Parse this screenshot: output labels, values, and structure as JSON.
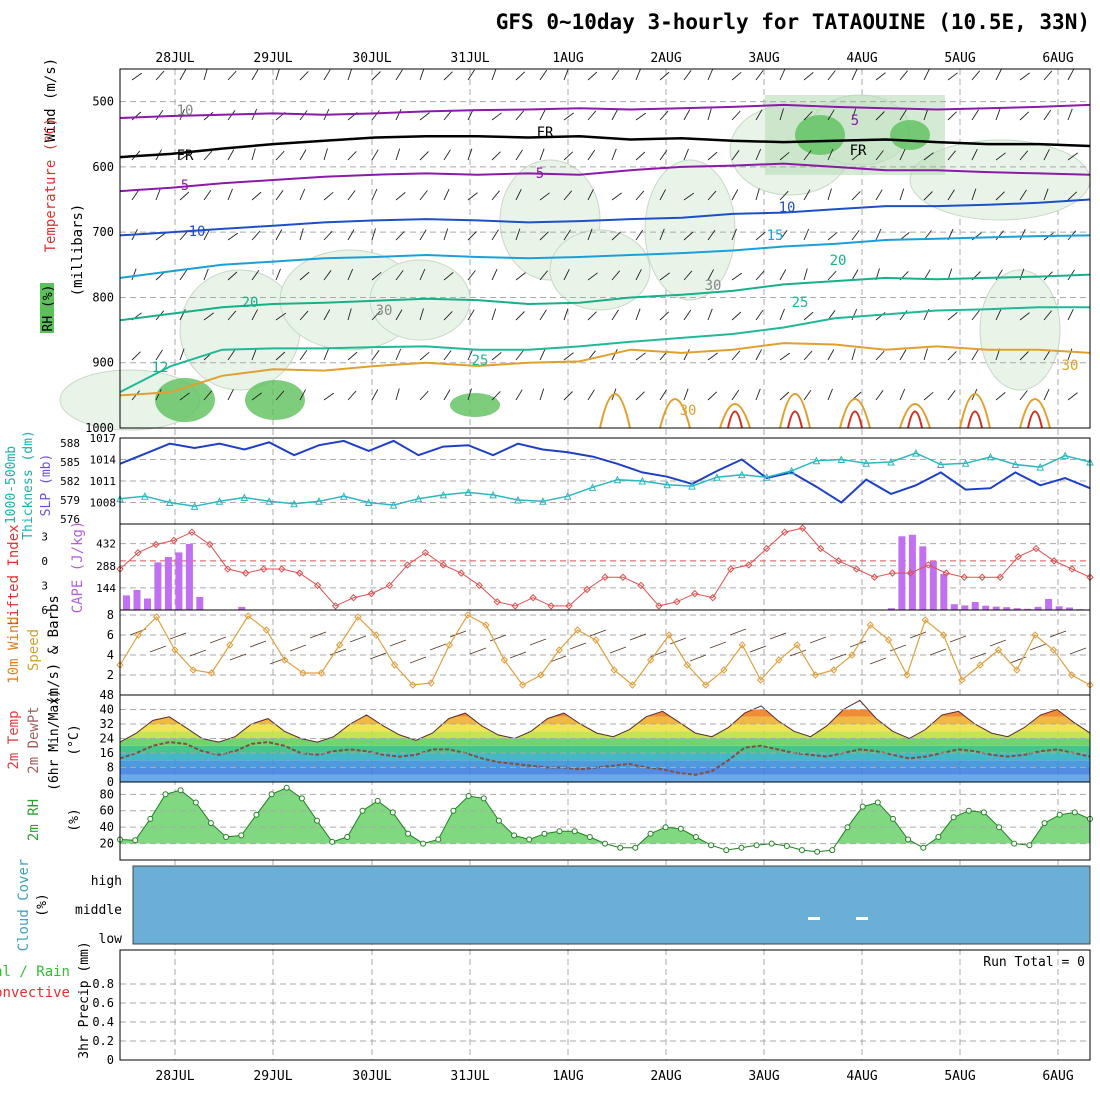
{
  "title": "GFS 0~10day 3-hourly for TATAOUINE (10.5E, 33N)",
  "chart_data": [
    {
      "type": "line",
      "title": "Upper-air cross section",
      "ylabel": "(millibars)",
      "legend": [
        "Wind (m/s)",
        "Temperature (°C)",
        "RH (%)"
      ],
      "dates": [
        "28JUL",
        "29JUL",
        "30JUL",
        "31JUL",
        "1AUG",
        "2AUG",
        "3AUG",
        "4AUG",
        "5AUG",
        "6AUG"
      ],
      "ylim": [
        450,
        1000
      ],
      "yticks": [
        500,
        600,
        700,
        800,
        900,
        1000
      ],
      "contour_labels": [
        "10",
        "FR",
        "FR",
        "FR",
        "5",
        "5",
        "5",
        "10",
        "10",
        "15",
        "20",
        "20",
        "25",
        "25",
        "30",
        "30",
        "30",
        "30",
        "12"
      ],
      "isotherms": [
        {
          "name": "-5",
          "color": "#8a1aa8",
          "values": [
            525,
            522,
            520,
            518,
            520,
            518,
            515,
            513,
            512,
            510,
            512,
            510,
            508,
            505,
            508,
            510,
            512,
            510,
            508,
            505
          ]
        },
        {
          "name": "FR",
          "color": "#000000",
          "values": [
            585,
            580,
            572,
            565,
            560,
            555,
            553,
            553,
            555,
            553,
            558,
            556,
            560,
            562,
            560,
            558,
            562,
            565,
            565,
            568
          ]
        },
        {
          "name": "5",
          "color": "#8a1aa8",
          "values": [
            637,
            632,
            625,
            620,
            615,
            612,
            610,
            612,
            610,
            612,
            605,
            600,
            598,
            595,
            600,
            605,
            605,
            608,
            610,
            612
          ]
        },
        {
          "name": "10",
          "color": "#1e4fc8",
          "values": [
            705,
            700,
            695,
            690,
            685,
            682,
            680,
            682,
            685,
            683,
            680,
            678,
            672,
            670,
            665,
            660,
            660,
            658,
            655,
            650
          ]
        },
        {
          "name": "15",
          "color": "#1aa0d8",
          "values": [
            770,
            760,
            750,
            745,
            740,
            738,
            735,
            738,
            740,
            738,
            735,
            732,
            728,
            722,
            718,
            712,
            710,
            708,
            706,
            705
          ]
        },
        {
          "name": "20",
          "color": "#18b08a",
          "values": [
            835,
            825,
            815,
            810,
            808,
            805,
            802,
            804,
            810,
            808,
            800,
            796,
            790,
            780,
            775,
            770,
            772,
            770,
            768,
            765
          ]
        },
        {
          "name": "25",
          "color": "#20b898",
          "values": [
            945,
            905,
            880,
            878,
            878,
            876,
            875,
            880,
            880,
            875,
            868,
            862,
            856,
            846,
            832,
            826,
            820,
            818,
            815,
            815
          ]
        }
      ],
      "warm_contours": {
        "name": "30",
        "color": "#e0a030",
        "hot_color": "#d03020",
        "values": [
          950,
          945,
          920,
          910,
          912,
          905,
          900,
          905,
          900,
          898,
          880,
          885,
          880,
          870,
          872,
          880,
          875,
          880,
          880,
          885
        ]
      }
    },
    {
      "type": "line",
      "title": "SLP / Thickness",
      "ylabel": "1000-500mb Thickness (dm) SLP (mb)",
      "ylim_left": [
        576,
        588
      ],
      "yticks_left": [
        576,
        579,
        582,
        585,
        588
      ],
      "ylim_right": [
        1005,
        1017
      ],
      "yticks_right": [
        1008,
        1011,
        1014,
        1017
      ],
      "series": [
        {
          "name": "SLP (mb)",
          "color": "#1e3fc8",
          "values": [
            1013.4,
            1014.8,
            1016.2,
            1015.6,
            1016.2,
            1015.4,
            1016.4,
            1014.6,
            1016.0,
            1016.6,
            1015.2,
            1016.6,
            1014.6,
            1015.8,
            1016.0,
            1014.6,
            1016.2,
            1015.4,
            1015.0,
            1014.4,
            1013.4,
            1012.2,
            1011.6,
            1010.6,
            1012.4,
            1014.0,
            1011.4,
            1012.2,
            1010.2,
            1008.0,
            1011.2,
            1009.2,
            1010.4,
            1012.2,
            1009.8,
            1010.0,
            1012.2,
            1010.4,
            1011.4,
            1010.0
          ]
        },
        {
          "name": "1000-500mb Thickness (dm)",
          "color": "#2ab8c0",
          "values": [
            579.2,
            579.6,
            578.6,
            578.0,
            578.8,
            579.4,
            578.8,
            578.4,
            578.8,
            579.6,
            578.6,
            578.2,
            579.2,
            579.8,
            580.2,
            579.8,
            579.0,
            578.8,
            579.6,
            581.0,
            582.2,
            582.0,
            581.4,
            581.2,
            582.6,
            583.0,
            582.6,
            583.6,
            585.2,
            585.4,
            584.8,
            585.0,
            586.4,
            584.6,
            584.8,
            585.8,
            584.6,
            584.2,
            586.0,
            585.0
          ]
        }
      ]
    },
    {
      "type": "bar",
      "title": "Lifted Index / CAPE",
      "ylabel": "Lifted Index CAPE (J/kg)",
      "ylim_left": [
        6,
        -4.5
      ],
      "yticks_left": [
        -3,
        0,
        3,
        6
      ],
      "ylim_right": [
        0,
        560
      ],
      "yticks_right": [
        144,
        288,
        432
      ],
      "cape": [
        95,
        130,
        75,
        310,
        345,
        375,
        430,
        85,
        0,
        0,
        0,
        20,
        0,
        0,
        0,
        0,
        0,
        0,
        0,
        0,
        0,
        0,
        0,
        0,
        0,
        0,
        0,
        0,
        0,
        0,
        0,
        0,
        0,
        0,
        0,
        0,
        0,
        0,
        0,
        0,
        0,
        0,
        0,
        0,
        0,
        0,
        0,
        0,
        0,
        0,
        0,
        0,
        0,
        0,
        0,
        0,
        0,
        0,
        0,
        0,
        0,
        0,
        0,
        0,
        0,
        0,
        0,
        0,
        0,
        0,
        0,
        0,
        0,
        12,
        480,
        490,
        415,
        320,
        235,
        38,
        30,
        52,
        28,
        22,
        18,
        12,
        8,
        20,
        72,
        24,
        16,
        5
      ],
      "lifted_index": [
        1.0,
        -1.0,
        -2.0,
        -2.5,
        -3.5,
        -2.0,
        1.0,
        1.5,
        1.0,
        1.0,
        1.5,
        3.0,
        5.5,
        4.5,
        4.0,
        3.0,
        0.5,
        -1.0,
        0.5,
        1.5,
        3.0,
        5.0,
        5.5,
        4.5,
        5.5,
        5.5,
        3.5,
        2.0,
        2.0,
        3.0,
        5.5,
        5.0,
        4.0,
        4.5,
        1.0,
        0.5,
        -1.5,
        -3.5,
        -4.0,
        -1.5,
        0.0,
        1.0,
        2.0,
        1.5,
        1.5,
        0.5,
        1.5,
        2.0,
        2.0,
        2.0,
        -0.5,
        -1.5,
        0.0,
        1.0,
        2.0
      ]
    },
    {
      "type": "line",
      "title": "10m Wind Speed & Barbs",
      "ylabel": "10m Wind Speed & Barbs (m/s)",
      "ylim": [
        0,
        8.5
      ],
      "yticks": [
        2,
        4,
        6,
        8
      ],
      "values": [
        3.0,
        6.0,
        7.8,
        4.5,
        2.5,
        2.2,
        5.0,
        7.9,
        6.5,
        3.5,
        2.2,
        2.2,
        5.0,
        7.8,
        6.0,
        3.0,
        1.0,
        1.2,
        5.0,
        8.0,
        7.0,
        3.5,
        1.0,
        2.0,
        4.5,
        6.5,
        5.5,
        2.5,
        1.0,
        3.5,
        6.0,
        3.0,
        1.0,
        2.5,
        5.0,
        1.5,
        3.5,
        5.0,
        2.0,
        2.5,
        4.0,
        7.0,
        5.5,
        2.0,
        7.5,
        6.0,
        1.5,
        3.0,
        4.5,
        2.5,
        6.0,
        4.5,
        2.0,
        1.0
      ]
    },
    {
      "type": "area",
      "title": "2m Temp / 2m DewPt",
      "ylabel": "2m Temp 2m DewPt (6hr Min/Max) (°C)",
      "ylim": [
        0,
        48
      ],
      "yticks": [
        0,
        8,
        16,
        24,
        32,
        40,
        48
      ],
      "temp": [
        22,
        27,
        34,
        36,
        30,
        24,
        22,
        25,
        32,
        35,
        28,
        24,
        22,
        25,
        32,
        37,
        31,
        26,
        23,
        27,
        35,
        38,
        31,
        26,
        24,
        28,
        35,
        38,
        32,
        27,
        25,
        29,
        36,
        39,
        33,
        27,
        25,
        30,
        38,
        42,
        34,
        28,
        25,
        31,
        40,
        45,
        35,
        28,
        24,
        29,
        37,
        39,
        32,
        27,
        25,
        30,
        37,
        40,
        33,
        27
      ],
      "dewpoint": [
        13,
        16,
        20,
        22,
        21,
        17,
        15,
        17,
        21,
        22,
        20,
        16,
        15,
        17,
        18,
        17,
        15,
        14,
        15,
        18,
        18,
        16,
        13,
        11,
        10,
        9,
        8,
        8,
        7,
        8,
        9,
        10,
        8,
        7,
        5,
        4,
        6,
        12,
        19,
        20,
        18,
        16,
        15,
        14,
        16,
        18,
        17,
        15,
        13,
        14,
        16,
        18,
        17,
        15,
        14,
        15,
        17,
        18,
        16,
        14
      ]
    },
    {
      "type": "area",
      "title": "2m RH",
      "ylabel": "2m RH (%)",
      "ylim": [
        0,
        95
      ],
      "yticks": [
        20,
        40,
        60,
        80
      ],
      "values": [
        25,
        24,
        50,
        80,
        85,
        70,
        45,
        28,
        30,
        55,
        80,
        88,
        75,
        48,
        22,
        28,
        60,
        72,
        58,
        32,
        20,
        25,
        60,
        78,
        75,
        48,
        30,
        25,
        32,
        35,
        35,
        28,
        20,
        15,
        15,
        32,
        40,
        38,
        28,
        18,
        12,
        15,
        18,
        20,
        17,
        12,
        10,
        12,
        40,
        65,
        70,
        50,
        25,
        15,
        28,
        52,
        60,
        58,
        40,
        20,
        18,
        45,
        55,
        58,
        50
      ]
    },
    {
      "type": "heatmap",
      "title": "Cloud Cover",
      "ylabel": "Cloud Cover (%)",
      "levels": [
        "high",
        "middle",
        "low"
      ]
    },
    {
      "type": "bar",
      "title": "3hr Precip",
      "ylabel": "3hr Precip (mm)",
      "legend": [
        "Total / Rain",
        "Convective"
      ],
      "ylim": [
        0,
        1.0
      ],
      "yticks": [
        "0",
        "0.2",
        "0.4",
        "0.6",
        "0.8"
      ],
      "annotation": "Run Total = 0",
      "values": []
    }
  ],
  "labels": {
    "wind": "Wind (m/s)",
    "temperature": "Temperature (°C)",
    "rh": "RH (%)",
    "millibars": "(millibars)",
    "thickness": "1000-500mb",
    "thickness2": "Thickness (dm)",
    "slp": "SLP (mb)",
    "lifted": "Lifted Index",
    "cape": "CAPE (J/kg)",
    "wind10": "10m Wind",
    "speed": "Speed",
    "barbs": "(m/s) & Barbs",
    "temp2m": "2m Temp",
    "dewpt": "2m DewPt",
    "minmax": "(6hr Min/Max)",
    "degc": "(°C)",
    "rh2m": "2m RH",
    "pct": "(%)",
    "cloud": "Cloud Cover",
    "cloudpct": "(%)",
    "rain": "Total / Rain",
    "convective": "Convective",
    "precip": "3hr Precip (mm)"
  },
  "colors": {
    "rh_fill": "#e8f4e8",
    "rh_fill_mid": "#b8dcb8",
    "rh_fill_high": "#5cc05c",
    "cloud": "#6baed6",
    "slp": "#1e3fc8",
    "thickness": "#2ab8c0",
    "lifted": "#e05050",
    "cape": "#c070f0",
    "wind": "#e0a040",
    "rh2m": "#30c030"
  }
}
